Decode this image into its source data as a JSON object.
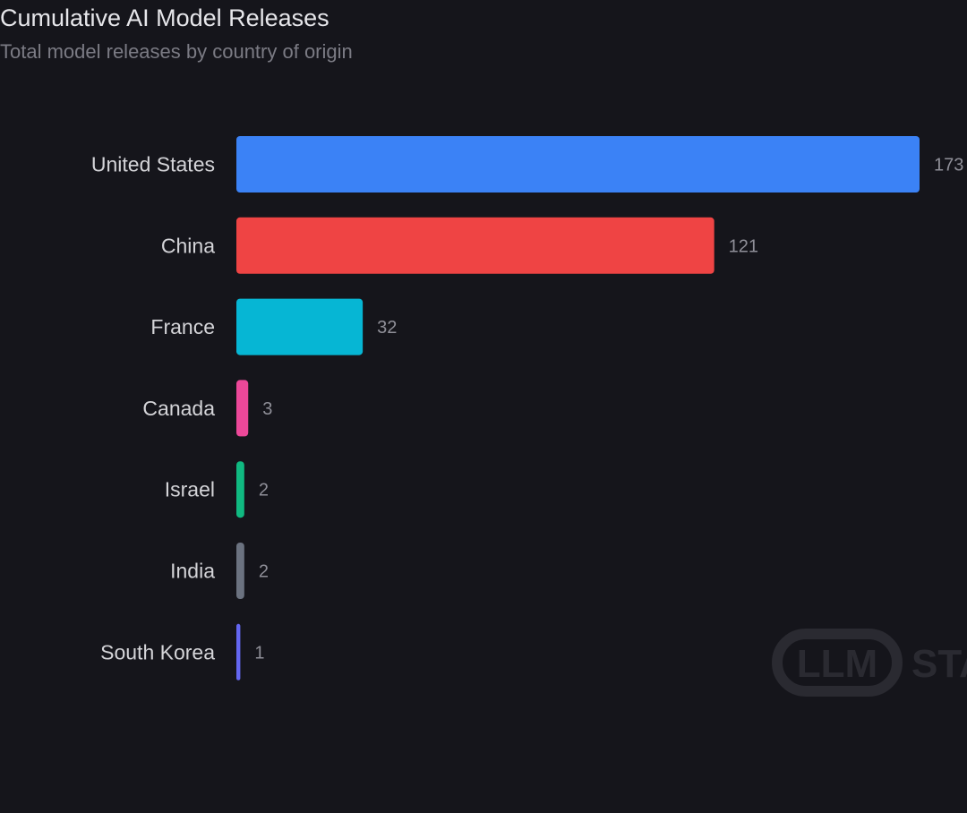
{
  "chart_data": {
    "type": "bar",
    "orientation": "horizontal",
    "title": "Cumulative AI Model Releases",
    "subtitle": "Total model releases by country of origin",
    "categories": [
      "United States",
      "China",
      "France",
      "Canada",
      "Israel",
      "India",
      "South Korea"
    ],
    "values": [
      173,
      121,
      32,
      3,
      2,
      2,
      1
    ],
    "colors": [
      "#3b82f6",
      "#ef4444",
      "#06b6d4",
      "#ec4899",
      "#10b981",
      "#6b7280",
      "#6366f1"
    ],
    "xlim": [
      0,
      173
    ],
    "grid": false,
    "legend": "none"
  },
  "watermark": {
    "logo_text": "LLM",
    "brand_text": "STATS"
  }
}
